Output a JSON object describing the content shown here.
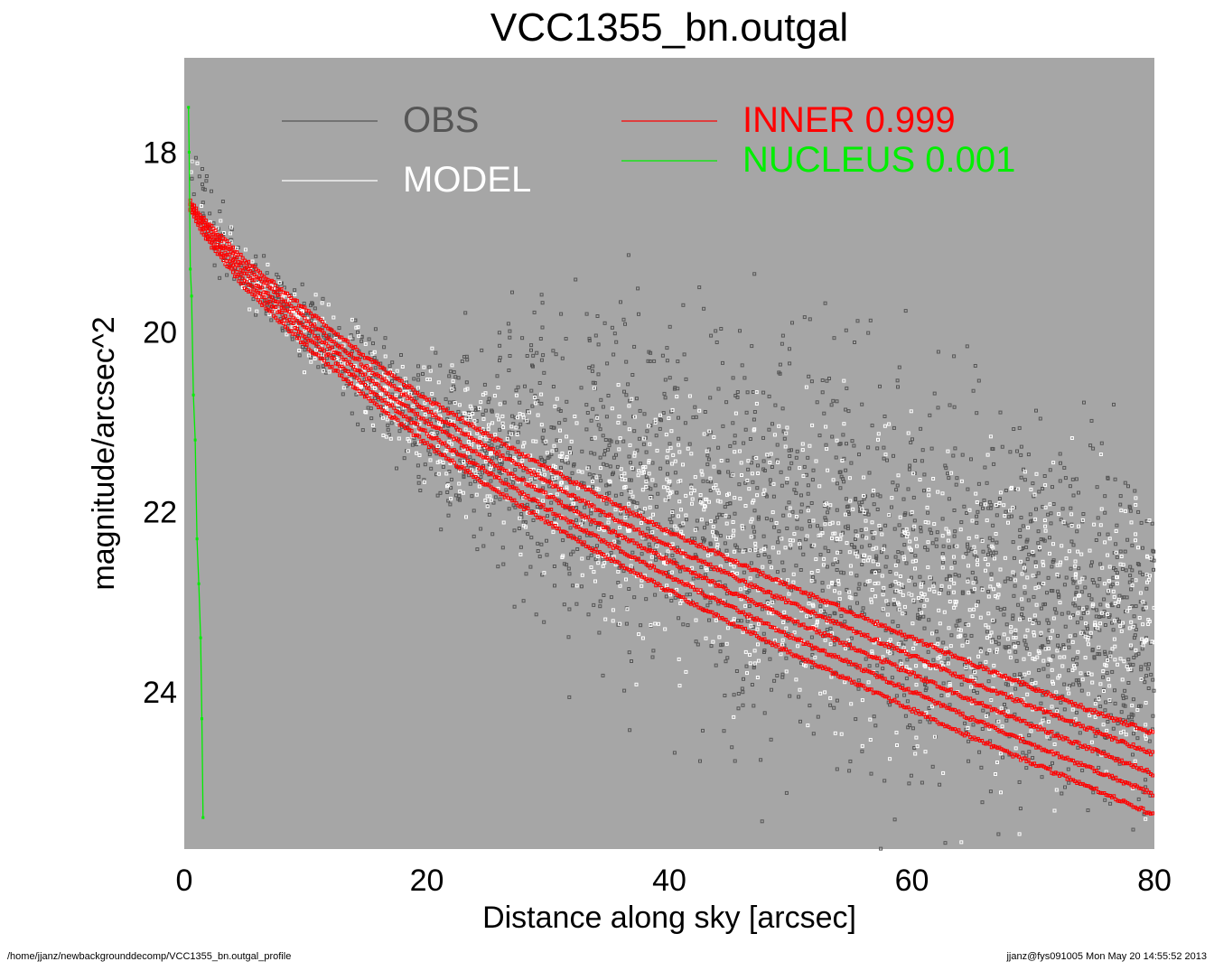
{
  "chart_data": {
    "type": "scatter",
    "title": "VCC1355_bn.outgal",
    "xlabel": "Distance along sky [arcsec]",
    "ylabel": "magnitude/arcsec^2",
    "xlim": [
      0,
      80
    ],
    "ylim": [
      25.75,
      16.95
    ],
    "y_inverted": true,
    "x_ticks": [
      "0",
      "20",
      "40",
      "60",
      "80"
    ],
    "y_ticks": [
      "18",
      "20",
      "22",
      "24"
    ],
    "background_color": "#a6a6a6",
    "grid": false,
    "legend_position": "top",
    "series": [
      {
        "name": "OBS",
        "color": "#555555",
        "marker": "square",
        "band": [
          [
            0.5,
            18.1
          ],
          [
            2,
            18.8
          ],
          [
            5,
            19.3
          ],
          [
            10,
            19.95
          ],
          [
            15,
            20.5
          ],
          [
            20,
            21.0
          ],
          [
            30,
            21.5
          ],
          [
            40,
            21.9
          ],
          [
            50,
            22.2
          ],
          [
            60,
            22.7
          ],
          [
            70,
            23.2
          ],
          [
            80,
            23.5
          ]
        ],
        "spread": [
          [
            0.5,
            0.5
          ],
          [
            5,
            0.3
          ],
          [
            10,
            0.4
          ],
          [
            20,
            0.8
          ],
          [
            30,
            1.6
          ],
          [
            40,
            2.2
          ],
          [
            50,
            2.4
          ],
          [
            60,
            2.3
          ],
          [
            70,
            2.1
          ],
          [
            80,
            2.0
          ]
        ]
      },
      {
        "name": "MODEL",
        "color": "#ffffff",
        "marker": "square",
        "band": [
          [
            0.5,
            18.2
          ],
          [
            2,
            18.8
          ],
          [
            5,
            19.3
          ],
          [
            10,
            19.95
          ],
          [
            15,
            20.5
          ],
          [
            20,
            21.0
          ],
          [
            30,
            21.6
          ],
          [
            40,
            22.2
          ],
          [
            50,
            22.6
          ],
          [
            60,
            22.9
          ],
          [
            70,
            23.2
          ],
          [
            80,
            23.4
          ]
        ],
        "spread": [
          [
            0.5,
            0.3
          ],
          [
            10,
            0.35
          ],
          [
            20,
            0.6
          ],
          [
            30,
            0.9
          ],
          [
            40,
            1.4
          ],
          [
            50,
            1.6
          ],
          [
            60,
            1.7
          ],
          [
            70,
            1.8
          ],
          [
            80,
            1.8
          ]
        ]
      },
      {
        "name": "INNER",
        "label_value": "0.999",
        "color": "#ff0000",
        "x": [
          0.5,
          2,
          5,
          10,
          15,
          20,
          25,
          30,
          35,
          40,
          45,
          50,
          55,
          60,
          65,
          70,
          75,
          80
        ],
        "y": [
          18.6,
          18.9,
          19.35,
          19.95,
          20.5,
          21.0,
          21.42,
          21.82,
          22.2,
          22.55,
          22.88,
          23.2,
          23.5,
          23.8,
          24.1,
          24.38,
          24.65,
          24.92
        ],
        "band_width": [
          0.05,
          0.1,
          0.15,
          0.2,
          0.22,
          0.25,
          0.28,
          0.3,
          0.32,
          0.33,
          0.35,
          0.37,
          0.38,
          0.4,
          0.41,
          0.42,
          0.43,
          0.45
        ]
      },
      {
        "name": "NUCLEUS",
        "label_value": "0.001",
        "color": "#00ee00",
        "x": [
          0.35,
          0.4,
          0.5,
          0.6,
          0.75,
          0.9,
          1.05,
          1.2,
          1.35,
          1.45,
          1.55
        ],
        "y": [
          17.5,
          18.0,
          19.3,
          19.6,
          20.7,
          21.2,
          22.3,
          22.8,
          23.4,
          24.3,
          25.4
        ]
      }
    ]
  },
  "footer": {
    "path": "/home/jjanz/newbackgrounddecomp/VCC1355_bn.outgal_profile",
    "stamp": "jjanz@fys091005  Mon May 20 14:55:52 2013"
  }
}
